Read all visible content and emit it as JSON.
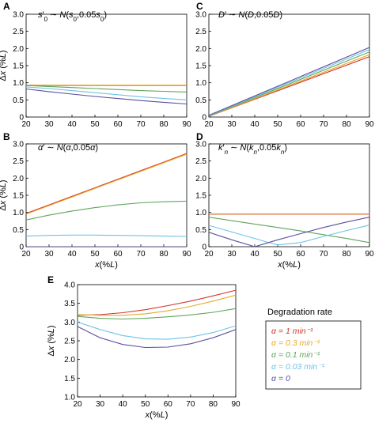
{
  "figure": {
    "legend": {
      "title": "Degradation rate",
      "entries": [
        {
          "label": "α = 1 min⁻¹",
          "color": "#d3362d"
        },
        {
          "label": "α = 0.3 min⁻¹",
          "color": "#e6a92a"
        },
        {
          "label": "α = 0.1 min⁻¹",
          "color": "#5fa55a"
        },
        {
          "label": "α = 0.03 min⁻¹",
          "color": "#6cc3e6"
        },
        {
          "label": "α = 0",
          "color": "#5b4f9e"
        }
      ]
    }
  },
  "chart_data": [
    {
      "panel": "A",
      "title": "s′0 ∼ N(s0,0.05s0)",
      "type": "line",
      "xlabel": "",
      "ylabel": "Δx (%L)",
      "xlim": [
        20,
        90
      ],
      "ylim": [
        0,
        3.0
      ],
      "xticks": [
        20,
        30,
        40,
        50,
        60,
        70,
        80,
        90
      ],
      "yticks": [
        0,
        0.5,
        1.0,
        1.5,
        2.0,
        2.5,
        3.0
      ],
      "x": [
        20,
        30,
        40,
        50,
        60,
        70,
        80,
        90
      ],
      "series": [
        {
          "color": "#d3362d",
          "values": [
            0.92,
            0.92,
            0.92,
            0.92,
            0.92,
            0.92,
            0.92,
            0.92
          ]
        },
        {
          "color": "#e6a92a",
          "values": [
            0.93,
            0.93,
            0.93,
            0.93,
            0.93,
            0.93,
            0.93,
            0.93
          ]
        },
        {
          "color": "#5fa55a",
          "values": [
            0.92,
            0.89,
            0.86,
            0.83,
            0.8,
            0.77,
            0.75,
            0.73
          ]
        },
        {
          "color": "#6cc3e6",
          "values": [
            0.88,
            0.83,
            0.77,
            0.71,
            0.65,
            0.59,
            0.54,
            0.5
          ]
        },
        {
          "color": "#5b4f9e",
          "values": [
            0.82,
            0.74,
            0.67,
            0.6,
            0.54,
            0.48,
            0.43,
            0.38
          ]
        }
      ]
    },
    {
      "panel": "B",
      "title": "α′ ∼ N(α,0.05α)",
      "type": "line",
      "xlabel": "x(%L)",
      "ylabel": "Δx (%L)",
      "xlim": [
        20,
        90
      ],
      "ylim": [
        0,
        3.0
      ],
      "xticks": [
        20,
        30,
        40,
        50,
        60,
        70,
        80,
        90
      ],
      "yticks": [
        0,
        0.5,
        1.0,
        1.5,
        2.0,
        2.5,
        3.0
      ],
      "x": [
        20,
        30,
        40,
        50,
        60,
        70,
        80,
        90
      ],
      "series": [
        {
          "color": "#d3362d",
          "values": [
            0.97,
            1.22,
            1.47,
            1.72,
            1.97,
            2.22,
            2.47,
            2.72
          ]
        },
        {
          "color": "#e6a92a",
          "values": [
            0.95,
            1.2,
            1.45,
            1.7,
            1.95,
            2.2,
            2.45,
            2.7
          ]
        },
        {
          "color": "#5fa55a",
          "values": [
            0.78,
            0.92,
            1.04,
            1.14,
            1.22,
            1.28,
            1.31,
            1.33
          ]
        },
        {
          "color": "#6cc3e6",
          "values": [
            0.31,
            0.33,
            0.34,
            0.34,
            0.33,
            0.32,
            0.31,
            0.3
          ]
        },
        {
          "color": "#5b4f9e",
          "values": [
            0,
            0,
            0,
            0,
            0,
            0,
            0,
            0
          ]
        }
      ]
    },
    {
      "panel": "C",
      "title": "D′ ∼ N(D,0.05D)",
      "type": "line",
      "xlabel": "",
      "ylabel": "",
      "xlim": [
        20,
        90
      ],
      "ylim": [
        0,
        3.0
      ],
      "xticks": [
        20,
        30,
        40,
        50,
        60,
        70,
        80,
        90
      ],
      "yticks": [
        0,
        0.5,
        1.0,
        1.5,
        2.0,
        2.5,
        3.0
      ],
      "x": [
        20,
        90
      ],
      "series": [
        {
          "color": "#d3362d",
          "values": [
            0.02,
            1.76
          ]
        },
        {
          "color": "#e6a92a",
          "values": [
            0.02,
            1.82
          ]
        },
        {
          "color": "#5fa55a",
          "values": [
            0.03,
            1.9
          ]
        },
        {
          "color": "#6cc3e6",
          "values": [
            0.04,
            1.97
          ]
        },
        {
          "color": "#5b4f9e",
          "values": [
            0.05,
            2.03
          ]
        }
      ]
    },
    {
      "panel": "D",
      "title": "k′n ∼ N(kn,0.05kn)",
      "type": "line",
      "xlabel": "x(%L)",
      "ylabel": "",
      "xlim": [
        20,
        90
      ],
      "ylim": [
        0,
        3.0
      ],
      "xticks": [
        20,
        30,
        40,
        50,
        60,
        70,
        80,
        90
      ],
      "yticks": [
        0,
        0.5,
        1.0,
        1.5,
        2.0,
        2.5,
        3.0
      ],
      "x": [
        20,
        30,
        40,
        45,
        50,
        60,
        70,
        80,
        90
      ],
      "series": [
        {
          "color": "#d3362d",
          "values": [
            0.95,
            0.95,
            0.95,
            0.95,
            0.95,
            0.95,
            0.95,
            0.95,
            0.95
          ]
        },
        {
          "color": "#e6a92a",
          "values": [
            0.96,
            0.96,
            0.96,
            0.96,
            0.96,
            0.96,
            0.96,
            0.96,
            0.96
          ]
        },
        {
          "color": "#5fa55a",
          "values": [
            0.86,
            0.76,
            0.66,
            0.61,
            0.56,
            0.46,
            0.35,
            0.24,
            0.12
          ]
        },
        {
          "color": "#6cc3e6",
          "values": [
            0.62,
            0.43,
            0.24,
            0.14,
            0.05,
            0.12,
            0.3,
            0.47,
            0.63
          ]
        },
        {
          "color": "#5b4f9e",
          "values": [
            0.42,
            0.2,
            0.0,
            0.1,
            0.2,
            0.38,
            0.56,
            0.72,
            0.86
          ]
        }
      ]
    },
    {
      "panel": "E",
      "title": "",
      "type": "line",
      "xlabel": "x(%L)",
      "ylabel": "Δx (%L)",
      "xlim": [
        20,
        90
      ],
      "ylim": [
        1.0,
        4.0
      ],
      "xticks": [
        20,
        30,
        40,
        50,
        60,
        70,
        80,
        90
      ],
      "yticks": [
        1.0,
        1.5,
        2.0,
        2.5,
        3.0,
        3.5,
        4.0
      ],
      "x": [
        20,
        30,
        40,
        50,
        60,
        70,
        80,
        90
      ],
      "series": [
        {
          "color": "#d3362d",
          "values": [
            3.18,
            3.2,
            3.25,
            3.33,
            3.44,
            3.56,
            3.7,
            3.85
          ]
        },
        {
          "color": "#e6a92a",
          "values": [
            3.2,
            3.18,
            3.18,
            3.22,
            3.3,
            3.42,
            3.56,
            3.72
          ]
        },
        {
          "color": "#5fa55a",
          "values": [
            3.15,
            3.1,
            3.08,
            3.1,
            3.14,
            3.19,
            3.26,
            3.36
          ]
        },
        {
          "color": "#6cc3e6",
          "values": [
            3.0,
            2.8,
            2.64,
            2.55,
            2.54,
            2.6,
            2.72,
            2.9
          ]
        },
        {
          "color": "#5b4f9e",
          "values": [
            2.88,
            2.58,
            2.4,
            2.32,
            2.33,
            2.42,
            2.58,
            2.8
          ]
        }
      ]
    }
  ]
}
